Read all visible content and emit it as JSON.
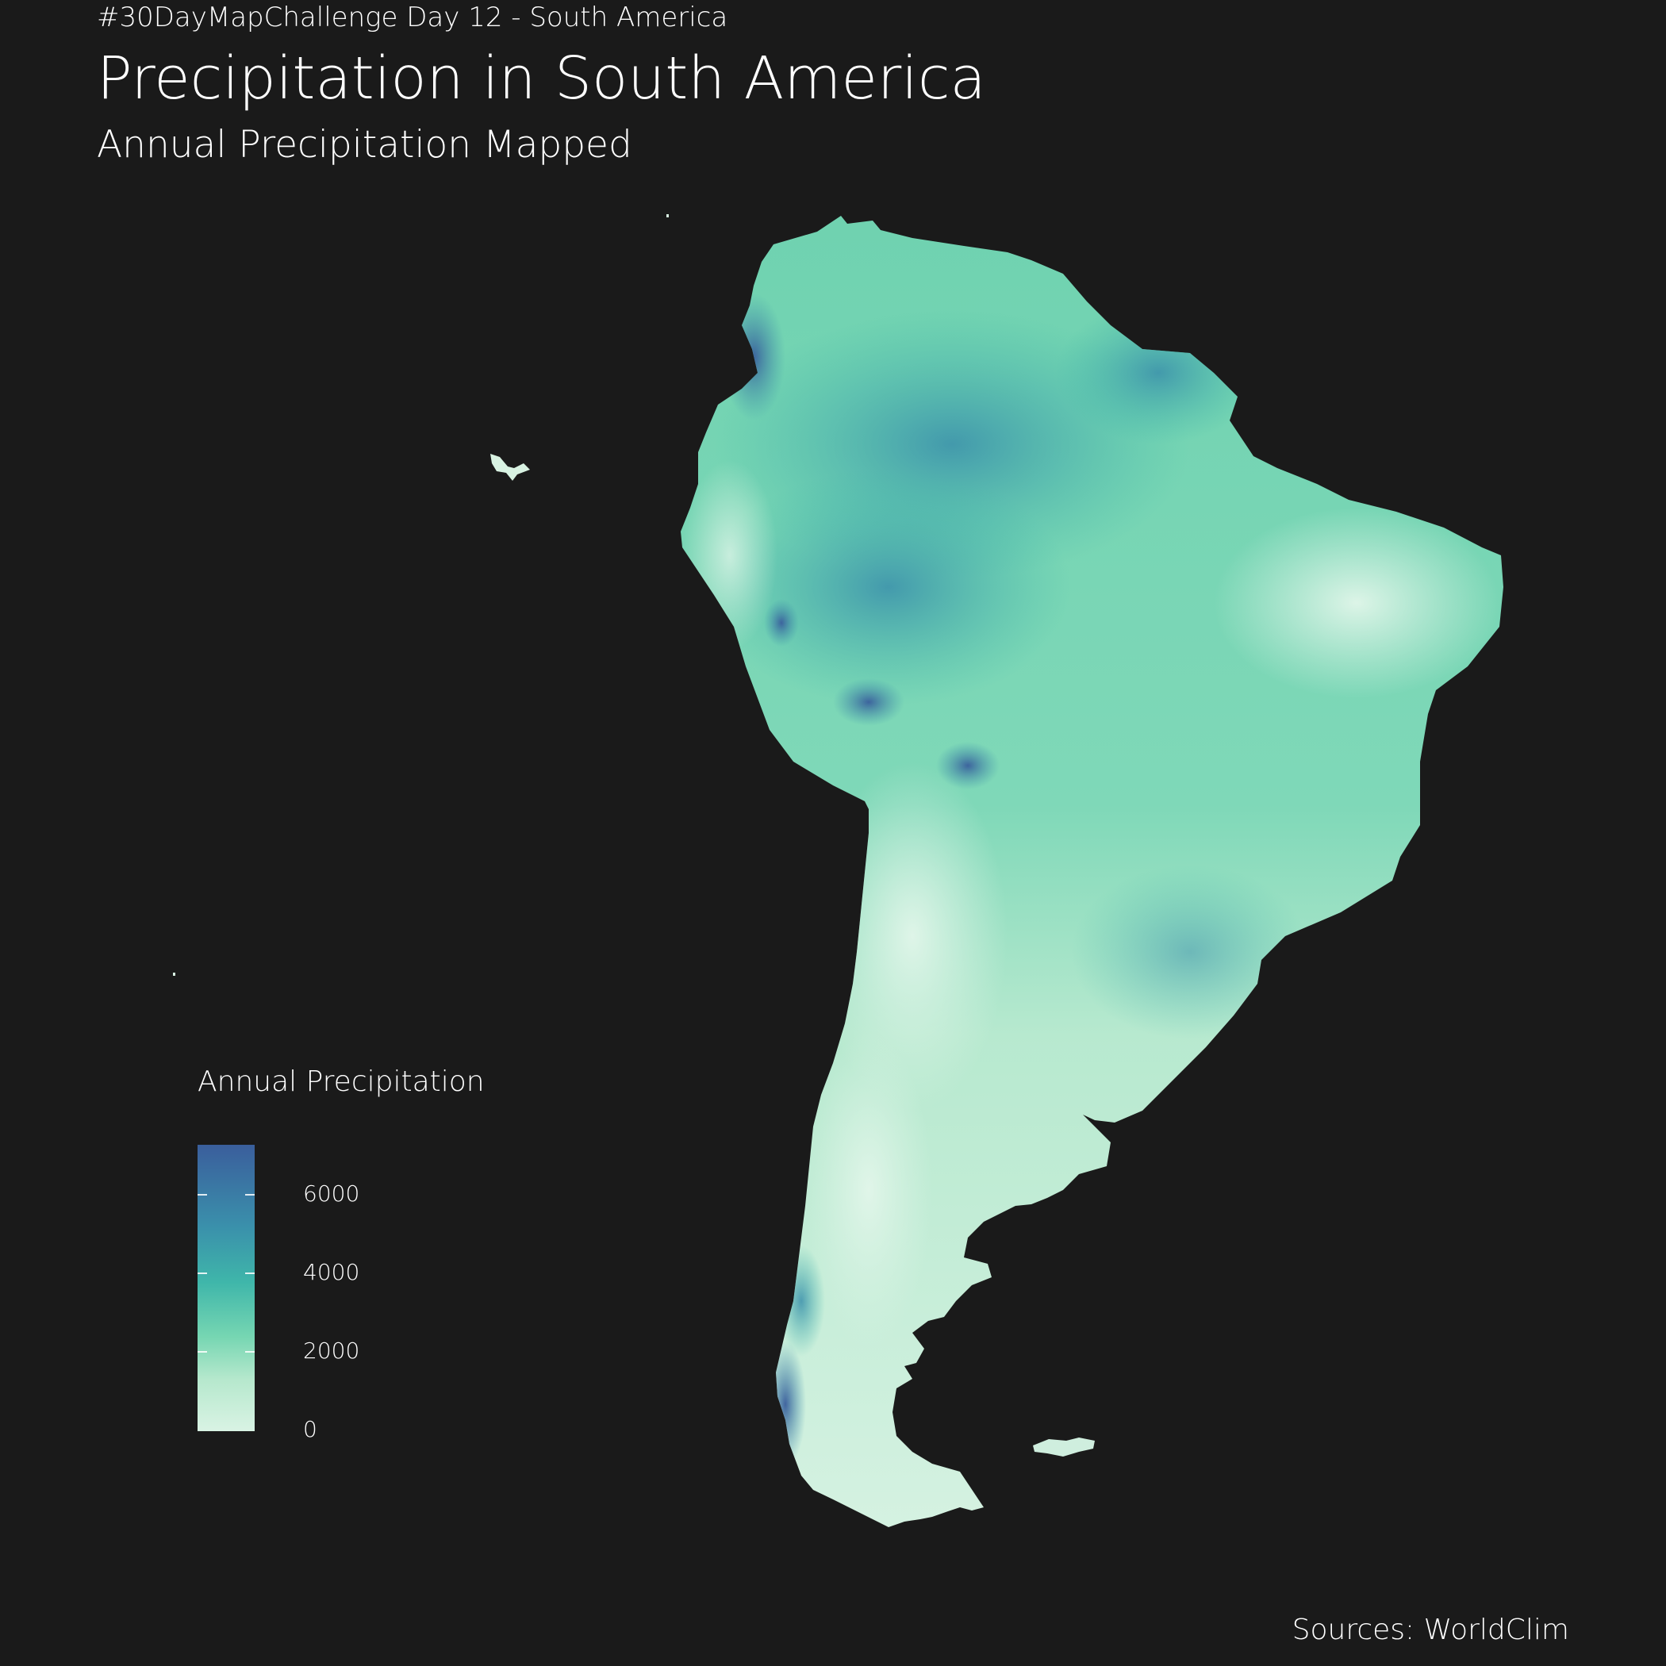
{
  "header": {
    "challenge": "#30DayMapChallenge Day 12 - South America",
    "title": "Precipitation in South America",
    "subtitle": "Annual Precipitation Mapped"
  },
  "caption": "Sources: WorldClim",
  "legend": {
    "title": "Annual Precipitation",
    "ticks": [
      "6000",
      "4000",
      "2000",
      "0"
    ],
    "min": 0,
    "max": 7300,
    "colors": [
      "#d9f3e4",
      "#b6e8cd",
      "#76d6b2",
      "#3fb6aa",
      "#3a8fab",
      "#3a5e9c"
    ]
  },
  "map": {
    "region": "South America",
    "background": "#1a1a1a"
  }
}
